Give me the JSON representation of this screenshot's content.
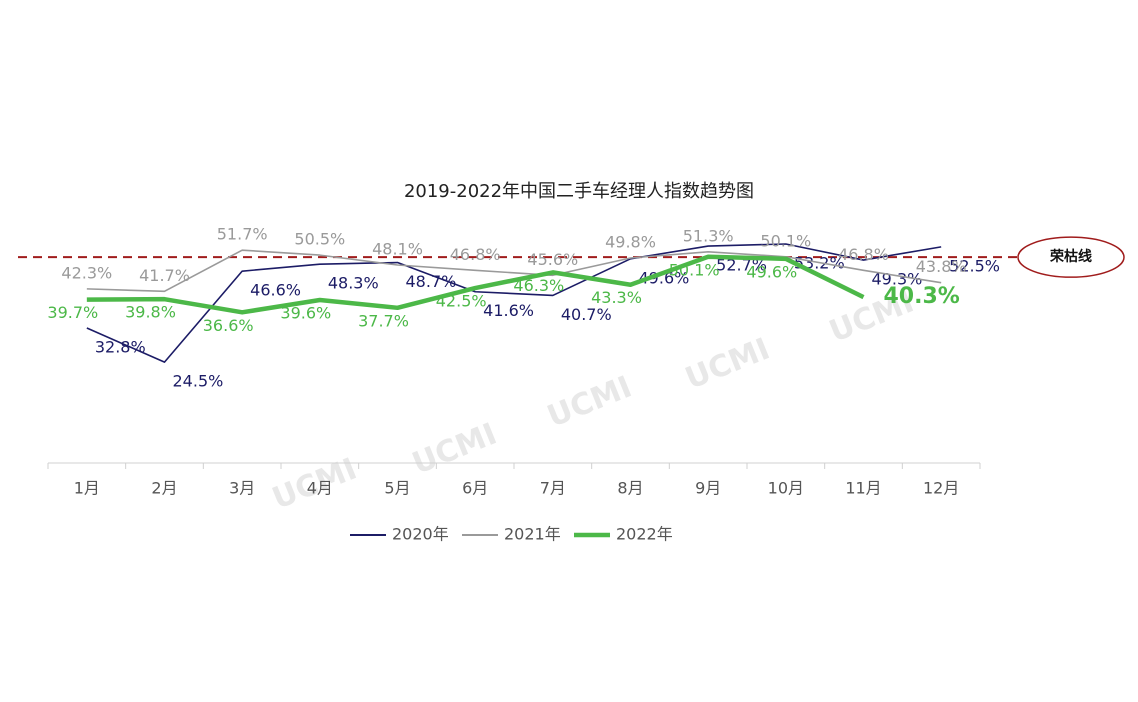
{
  "chart_data": {
    "type": "line",
    "title": "2019-2022年中国二手车经理人指数趋势图",
    "categories": [
      "1月",
      "2月",
      "3月",
      "4月",
      "5月",
      "6月",
      "7月",
      "8月",
      "9月",
      "10月",
      "11月",
      "12月"
    ],
    "series": [
      {
        "name": "2020年",
        "color": "#1c1c66",
        "width": 1.6,
        "values": [
          32.8,
          24.5,
          46.6,
          48.3,
          48.7,
          41.6,
          40.7,
          49.6,
          52.7,
          53.2,
          49.3,
          52.5
        ],
        "value_labels": [
          "32.8%",
          "24.5%",
          "46.6%",
          "48.3%",
          "48.7%",
          "41.6%",
          "40.7%",
          "49.6%",
          "52.7%",
          "53.2%",
          "49.3%",
          "52.5%"
        ]
      },
      {
        "name": "2021年",
        "color": "#9a9a9a",
        "width": 1.6,
        "values": [
          42.3,
          41.7,
          51.7,
          50.5,
          48.1,
          46.8,
          45.6,
          49.8,
          51.3,
          50.1,
          46.8,
          43.8
        ],
        "value_labels": [
          "42.3%",
          "41.7%",
          "51.7%",
          "50.5%",
          "48.1%",
          "46.8%",
          "45.6%",
          "49.8%",
          "51.3%",
          "50.1%",
          "46.8%",
          "43.8%"
        ]
      },
      {
        "name": "2022年",
        "color": "#4cb848",
        "width": 4.5,
        "values": [
          39.7,
          39.8,
          36.6,
          39.6,
          37.7,
          42.5,
          46.3,
          43.3,
          50.1,
          49.6,
          40.3,
          null
        ],
        "value_labels": [
          "39.7%",
          "39.8%",
          "36.6%",
          "39.6%",
          "37.7%",
          "42.5%",
          "46.3%",
          "43.3%",
          "50.1%",
          "49.6%",
          "40.3%",
          null
        ]
      }
    ],
    "ylim": [
      0,
      60
    ],
    "reference_line": {
      "value": 50,
      "label": "荣枯线",
      "color": "#a01c1c"
    },
    "watermark": "UCMI"
  }
}
